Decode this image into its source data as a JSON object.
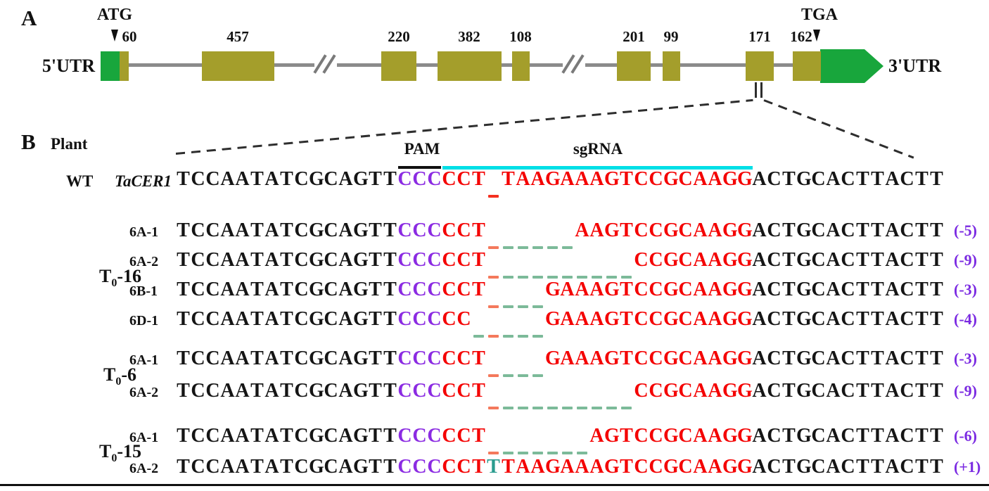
{
  "figure": {
    "panelA": {
      "label": "A",
      "start_codon_label": "ATG",
      "stop_codon_label": "TGA",
      "utr5_label": "5'UTR",
      "utr3_label": "3'UTR",
      "exon_sizes": [
        "60",
        "457",
        "220",
        "382",
        "108",
        "201",
        "99",
        "171",
        "162"
      ],
      "colors": {
        "exon": "#a49e2b",
        "utr": "#18a63c",
        "intron_line": "#8b8b8b"
      }
    },
    "panelB": {
      "label": "B",
      "header": "Plant",
      "pam_label": "PAM",
      "sgrna_label": "sgRNA",
      "colors": {
        "pam_letters": "#8b2be2",
        "target_letters": "#f40000",
        "sgrna_line": "#00dfe6",
        "gap_dash": "#f4795c",
        "deletion_dash": "#7cba99",
        "insertion_letter": "#2a9c8f",
        "mutation_note": "#7b2be2"
      },
      "wt_row": {
        "plant": "WT",
        "gene": "TaCER1",
        "segments": [
          {
            "t": "TCCAATATCGCAGTT",
            "c": "k"
          },
          {
            "t": "CCC",
            "c": "p"
          },
          {
            "t": "CCT",
            "c": "r"
          },
          {
            "t": "-",
            "c": "gapr"
          },
          {
            "t": "TAAGAAAGTCCGCAAGG",
            "c": "r"
          },
          {
            "t": "ACTGCACTTACTT",
            "c": "k"
          }
        ]
      },
      "groups": [
        {
          "pre": "T",
          "sub": "0",
          "post": "-16",
          "alleles": [
            {
              "label": "6A-1",
              "note": "(-5)",
              "segments": [
                {
                  "t": "TCCAATATCGCAGTT",
                  "c": "k"
                },
                {
                  "t": "CCC",
                  "c": "p"
                },
                {
                  "t": "CCT",
                  "c": "r"
                },
                {
                  "t": "-",
                  "c": "gap"
                },
                {
                  "t": "-----",
                  "c": "del"
                },
                {
                  "t": "AAGTCCGCAAGG",
                  "c": "r"
                },
                {
                  "t": "ACTGCACTTACTT",
                  "c": "k"
                }
              ]
            },
            {
              "label": "6A-2",
              "note": "(-9)",
              "segments": [
                {
                  "t": "TCCAATATCGCAGTT",
                  "c": "k"
                },
                {
                  "t": "CCC",
                  "c": "p"
                },
                {
                  "t": "CCT",
                  "c": "r"
                },
                {
                  "t": "-",
                  "c": "gap"
                },
                {
                  "t": "---------",
                  "c": "del"
                },
                {
                  "t": "CCGCAAGG",
                  "c": "r"
                },
                {
                  "t": "ACTGCACTTACTT",
                  "c": "k"
                }
              ]
            },
            {
              "label": "6B-1",
              "note": "(-3)",
              "segments": [
                {
                  "t": "TCCAATATCGCAGTT",
                  "c": "k"
                },
                {
                  "t": "CCC",
                  "c": "p"
                },
                {
                  "t": "CCT",
                  "c": "r"
                },
                {
                  "t": "-",
                  "c": "gap"
                },
                {
                  "t": "---",
                  "c": "del"
                },
                {
                  "t": "GAAAGTCCGCAAGG",
                  "c": "r"
                },
                {
                  "t": "ACTGCACTTACTT",
                  "c": "k"
                }
              ]
            },
            {
              "label": "6D-1",
              "note": "(-4)",
              "segments": [
                {
                  "t": "TCCAATATCGCAGTT",
                  "c": "k"
                },
                {
                  "t": "CCC",
                  "c": "p"
                },
                {
                  "t": "CC",
                  "c": "r"
                },
                {
                  "t": "-",
                  "c": "del"
                },
                {
                  "t": "-",
                  "c": "gap"
                },
                {
                  "t": "---",
                  "c": "del"
                },
                {
                  "t": "GAAAGTCCGCAAGG",
                  "c": "r"
                },
                {
                  "t": "ACTGCACTTACTT",
                  "c": "k"
                }
              ]
            }
          ]
        },
        {
          "pre": "T",
          "sub": "0",
          "post": "-6",
          "alleles": [
            {
              "label": "6A-1",
              "note": "(-3)",
              "segments": [
                {
                  "t": "TCCAATATCGCAGTT",
                  "c": "k"
                },
                {
                  "t": "CCC",
                  "c": "p"
                },
                {
                  "t": "CCT",
                  "c": "r"
                },
                {
                  "t": "-",
                  "c": "gap"
                },
                {
                  "t": "---",
                  "c": "del"
                },
                {
                  "t": "GAAAGTCCGCAAGG",
                  "c": "r"
                },
                {
                  "t": "ACTGCACTTACTT",
                  "c": "k"
                }
              ]
            },
            {
              "label": "6A-2",
              "note": "(-9)",
              "segments": [
                {
                  "t": "TCCAATATCGCAGTT",
                  "c": "k"
                },
                {
                  "t": "CCC",
                  "c": "p"
                },
                {
                  "t": "CCT",
                  "c": "r"
                },
                {
                  "t": "-",
                  "c": "gap"
                },
                {
                  "t": "---------",
                  "c": "del"
                },
                {
                  "t": "CCGCAAGG",
                  "c": "r"
                },
                {
                  "t": "ACTGCACTTACTT",
                  "c": "k"
                }
              ]
            }
          ]
        },
        {
          "pre": "T",
          "sub": "0",
          "post": "-15",
          "alleles": [
            {
              "label": "6A-1",
              "note": "(-6)",
              "segments": [
                {
                  "t": "TCCAATATCGCAGTT",
                  "c": "k"
                },
                {
                  "t": "CCC",
                  "c": "p"
                },
                {
                  "t": "CCT",
                  "c": "r"
                },
                {
                  "t": "-",
                  "c": "gap"
                },
                {
                  "t": "------",
                  "c": "del"
                },
                {
                  "t": "AGTCCGCAAGG",
                  "c": "r"
                },
                {
                  "t": "ACTGCACTTACTT",
                  "c": "k"
                }
              ]
            },
            {
              "label": "6A-2",
              "note": "(+1)",
              "segments": [
                {
                  "t": "TCCAATATCGCAGTT",
                  "c": "k"
                },
                {
                  "t": "CCC",
                  "c": "p"
                },
                {
                  "t": "CCT",
                  "c": "r"
                },
                {
                  "t": "T",
                  "c": "ins"
                },
                {
                  "t": "TAAGAAAGTCCGCAAGG",
                  "c": "r"
                },
                {
                  "t": "ACTGCACTTACTT",
                  "c": "k"
                }
              ]
            }
          ]
        }
      ]
    }
  }
}
